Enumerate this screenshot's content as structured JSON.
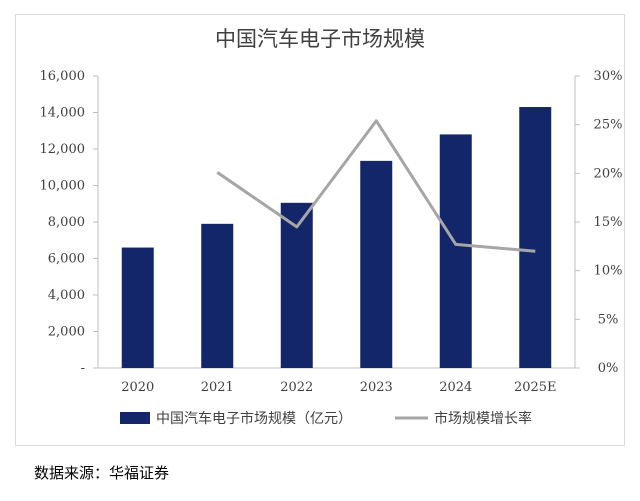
{
  "chart_data": {
    "type": "bar",
    "title": "中国汽车电子市场规模",
    "categories": [
      "2020",
      "2021",
      "2022",
      "2023",
      "2024",
      "2025E"
    ],
    "series": [
      {
        "name": "中国汽车电子市场规模（亿元）",
        "type": "bar",
        "axis": "left",
        "values": [
          6600,
          7900,
          9050,
          11350,
          12800,
          14300
        ]
      },
      {
        "name": "市场规模增长率",
        "type": "line",
        "axis": "right",
        "values": [
          null,
          0.201,
          0.145,
          0.254,
          0.127,
          0.12
        ]
      }
    ],
    "y_left": {
      "min": 0,
      "max": 16000,
      "tick_labels": [
        "-",
        "2,000",
        "4,000",
        "6,000",
        "8,000",
        "10,000",
        "12,000",
        "14,000",
        "16,000"
      ]
    },
    "y_right": {
      "min": 0,
      "max": 0.3,
      "tick_labels": [
        "0%",
        "5%",
        "10%",
        "15%",
        "20%",
        "25%",
        "30%"
      ]
    },
    "grid": false,
    "legend": "bottom",
    "colors": {
      "bar": "#14266a",
      "line": "#a6a6a6",
      "text": "#404040",
      "axis": "#bfbfbf"
    }
  },
  "source": "数据来源：华福证券"
}
